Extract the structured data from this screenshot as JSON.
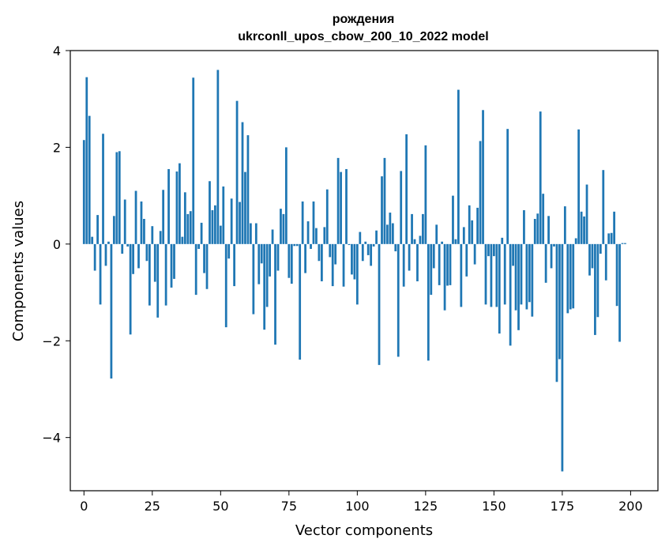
{
  "chart_data": {
    "type": "bar",
    "title_line1": "рождения",
    "title_line2": "ukrconll_upos_cbow_200_10_2022 model",
    "xlabel": "Vector components",
    "ylabel": "Components values",
    "xlim": [
      -5,
      210
    ],
    "ylim": [
      -5.1,
      4.0
    ],
    "xticks": [
      0,
      25,
      50,
      75,
      100,
      125,
      150,
      175,
      200
    ],
    "xtick_labels": [
      "0",
      "25",
      "50",
      "75",
      "100",
      "125",
      "150",
      "175",
      "200"
    ],
    "yticks": [
      -4,
      -2,
      0,
      2,
      4
    ],
    "ytick_labels": [
      "−4",
      "−2",
      "0",
      "2",
      "4"
    ],
    "bar_color": "#1f77b4",
    "grid": false,
    "values": [
      2.15,
      3.45,
      2.65,
      0.15,
      -0.55,
      0.6,
      -1.25,
      2.28,
      -0.45,
      0.05,
      -2.78,
      0.58,
      1.9,
      1.92,
      -0.2,
      0.92,
      -0.05,
      -1.87,
      -0.62,
      1.1,
      -0.5,
      0.88,
      0.52,
      -0.35,
      -1.27,
      0.37,
      -0.78,
      -1.52,
      0.27,
      1.12,
      -1.27,
      1.55,
      -0.9,
      -0.72,
      1.5,
      1.67,
      0.15,
      1.07,
      0.62,
      0.68,
      3.44,
      -1.05,
      -0.1,
      0.44,
      -0.6,
      -0.93,
      1.3,
      0.7,
      0.8,
      3.6,
      0.38,
      1.19,
      -1.72,
      -0.3,
      0.94,
      -0.87,
      2.96,
      0.87,
      2.52,
      1.49,
      2.25,
      0.43,
      -1.45,
      0.43,
      -0.83,
      -0.4,
      -1.77,
      -1.3,
      -0.67,
      0.3,
      -2.08,
      -0.55,
      0.73,
      0.62,
      2.0,
      -0.7,
      -0.82,
      -0.04,
      -0.04,
      -2.39,
      0.88,
      -0.6,
      0.47,
      -0.1,
      0.88,
      0.33,
      -0.35,
      -0.77,
      0.35,
      1.13,
      -0.27,
      -0.87,
      -0.42,
      1.78,
      1.49,
      -0.88,
      1.55,
      -0.02,
      -0.63,
      -0.73,
      -1.25,
      0.25,
      -0.35,
      0.05,
      -0.23,
      -0.45,
      -0.05,
      0.28,
      -2.5,
      1.4,
      1.78,
      0.4,
      0.65,
      0.43,
      -0.15,
      -2.33,
      1.51,
      -0.88,
      2.27,
      -0.55,
      0.62,
      0.1,
      -0.77,
      0.17,
      0.62,
      2.04,
      -2.41,
      -1.05,
      -0.5,
      0.4,
      -0.85,
      0.05,
      -1.37,
      -0.86,
      -0.85,
      1.0,
      0.1,
      3.19,
      -1.3,
      0.35,
      -0.67,
      0.8,
      0.49,
      -0.42,
      0.75,
      2.13,
      2.77,
      -1.25,
      -0.25,
      -1.3,
      -0.25,
      -1.3,
      -1.85,
      0.13,
      -1.25,
      2.38,
      -2.1,
      -0.45,
      -1.37,
      -1.78,
      -1.25,
      0.7,
      -1.35,
      -1.2,
      -1.5,
      0.52,
      0.63,
      2.74,
      1.04,
      -0.8,
      0.58,
      -0.5,
      -0.05,
      -2.85,
      -2.38,
      -4.7,
      0.78,
      -1.43,
      -1.35,
      -1.33,
      0.12,
      2.37,
      0.67,
      0.57,
      1.23,
      -0.65,
      -0.5,
      -1.88,
      -1.51,
      -0.2,
      1.53,
      -0.75,
      0.22,
      0.23,
      0.67,
      -1.28,
      -2.02,
      0.02,
      0.02
    ]
  }
}
